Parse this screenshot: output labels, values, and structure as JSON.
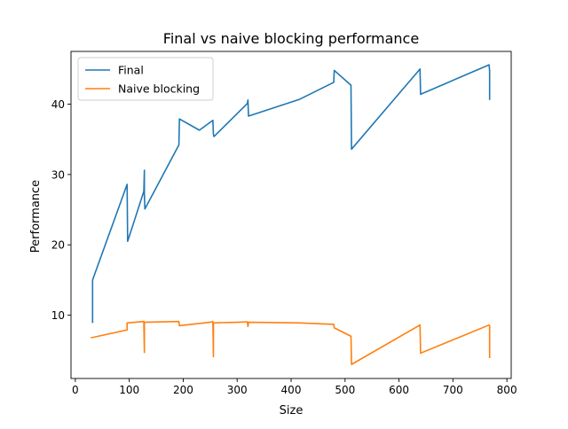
{
  "chart_data": {
    "type": "line",
    "title": "Final vs naive blocking performance",
    "xlabel": "Size",
    "ylabel": "Performance",
    "xlim": [
      -8,
      808
    ],
    "ylim": [
      1.0,
      47.5
    ],
    "xticks": [
      0,
      100,
      200,
      300,
      400,
      500,
      600,
      700,
      800
    ],
    "yticks": [
      10,
      20,
      30,
      40
    ],
    "grid": false,
    "legend_position": "upper-left",
    "series": [
      {
        "name": "Final",
        "color": "#1f77b4",
        "points": [
          [
            32,
            9.0
          ],
          [
            32,
            15.0
          ],
          [
            96,
            28.6
          ],
          [
            97,
            20.5
          ],
          [
            127,
            27.6
          ],
          [
            128,
            30.6
          ],
          [
            128,
            27.2
          ],
          [
            129,
            25.1
          ],
          [
            192,
            34.2
          ],
          [
            193,
            37.9
          ],
          [
            230,
            36.3
          ],
          [
            255,
            37.7
          ],
          [
            256,
            35.7
          ],
          [
            257,
            35.4
          ],
          [
            319,
            40.1
          ],
          [
            320,
            40.6
          ],
          [
            321,
            38.3
          ],
          [
            416,
            40.7
          ],
          [
            479,
            43.1
          ],
          [
            480,
            44.8
          ],
          [
            511,
            42.7
          ],
          [
            512,
            33.6
          ],
          [
            639,
            45.0
          ],
          [
            640,
            41.4
          ],
          [
            767,
            45.6
          ],
          [
            768,
            44.7
          ],
          [
            768,
            40.7
          ]
        ]
      },
      {
        "name": "Naive blocking",
        "color": "#ff7f0e",
        "points": [
          [
            30,
            6.8
          ],
          [
            96,
            7.9
          ],
          [
            96,
            8.9
          ],
          [
            127,
            9.1
          ],
          [
            128,
            4.7
          ],
          [
            128,
            9.0
          ],
          [
            192,
            9.1
          ],
          [
            193,
            8.5
          ],
          [
            250,
            9.0
          ],
          [
            255,
            9.1
          ],
          [
            256,
            4.1
          ],
          [
            256,
            8.9
          ],
          [
            300,
            9.0
          ],
          [
            319,
            9.05
          ],
          [
            320,
            8.4
          ],
          [
            321,
            9.0
          ],
          [
            416,
            8.9
          ],
          [
            479,
            8.7
          ],
          [
            480,
            8.2
          ],
          [
            511,
            7.0
          ],
          [
            512,
            3.0
          ],
          [
            639,
            8.6
          ],
          [
            640,
            4.6
          ],
          [
            767,
            8.6
          ],
          [
            768,
            8.5
          ],
          [
            768,
            4.0
          ]
        ]
      }
    ]
  }
}
